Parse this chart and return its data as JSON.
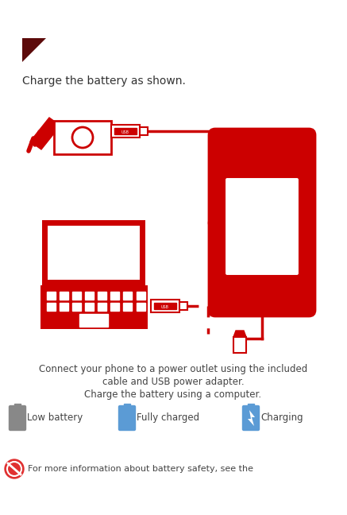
{
  "bg_color": "#ffffff",
  "title_text": "Charge the battery as shown.",
  "arrow_color": "#5c0a0a",
  "red": "#cc0000",
  "method_text_line1": "Connect your phone to a power outlet using the included",
  "method_text_line2": "cable and USB power adapter.",
  "method_text_line3": "Charge the battery using a computer.",
  "method_fontsize": 8.5,
  "method_color": "#444444",
  "legend_fontsize": 8.5,
  "safety_text": "For more information about battery safety, see the",
  "safety_fontsize": 8.0,
  "safety_color": "#444444",
  "gray_icon": "#888888",
  "blue_icon": "#5b9bd5"
}
